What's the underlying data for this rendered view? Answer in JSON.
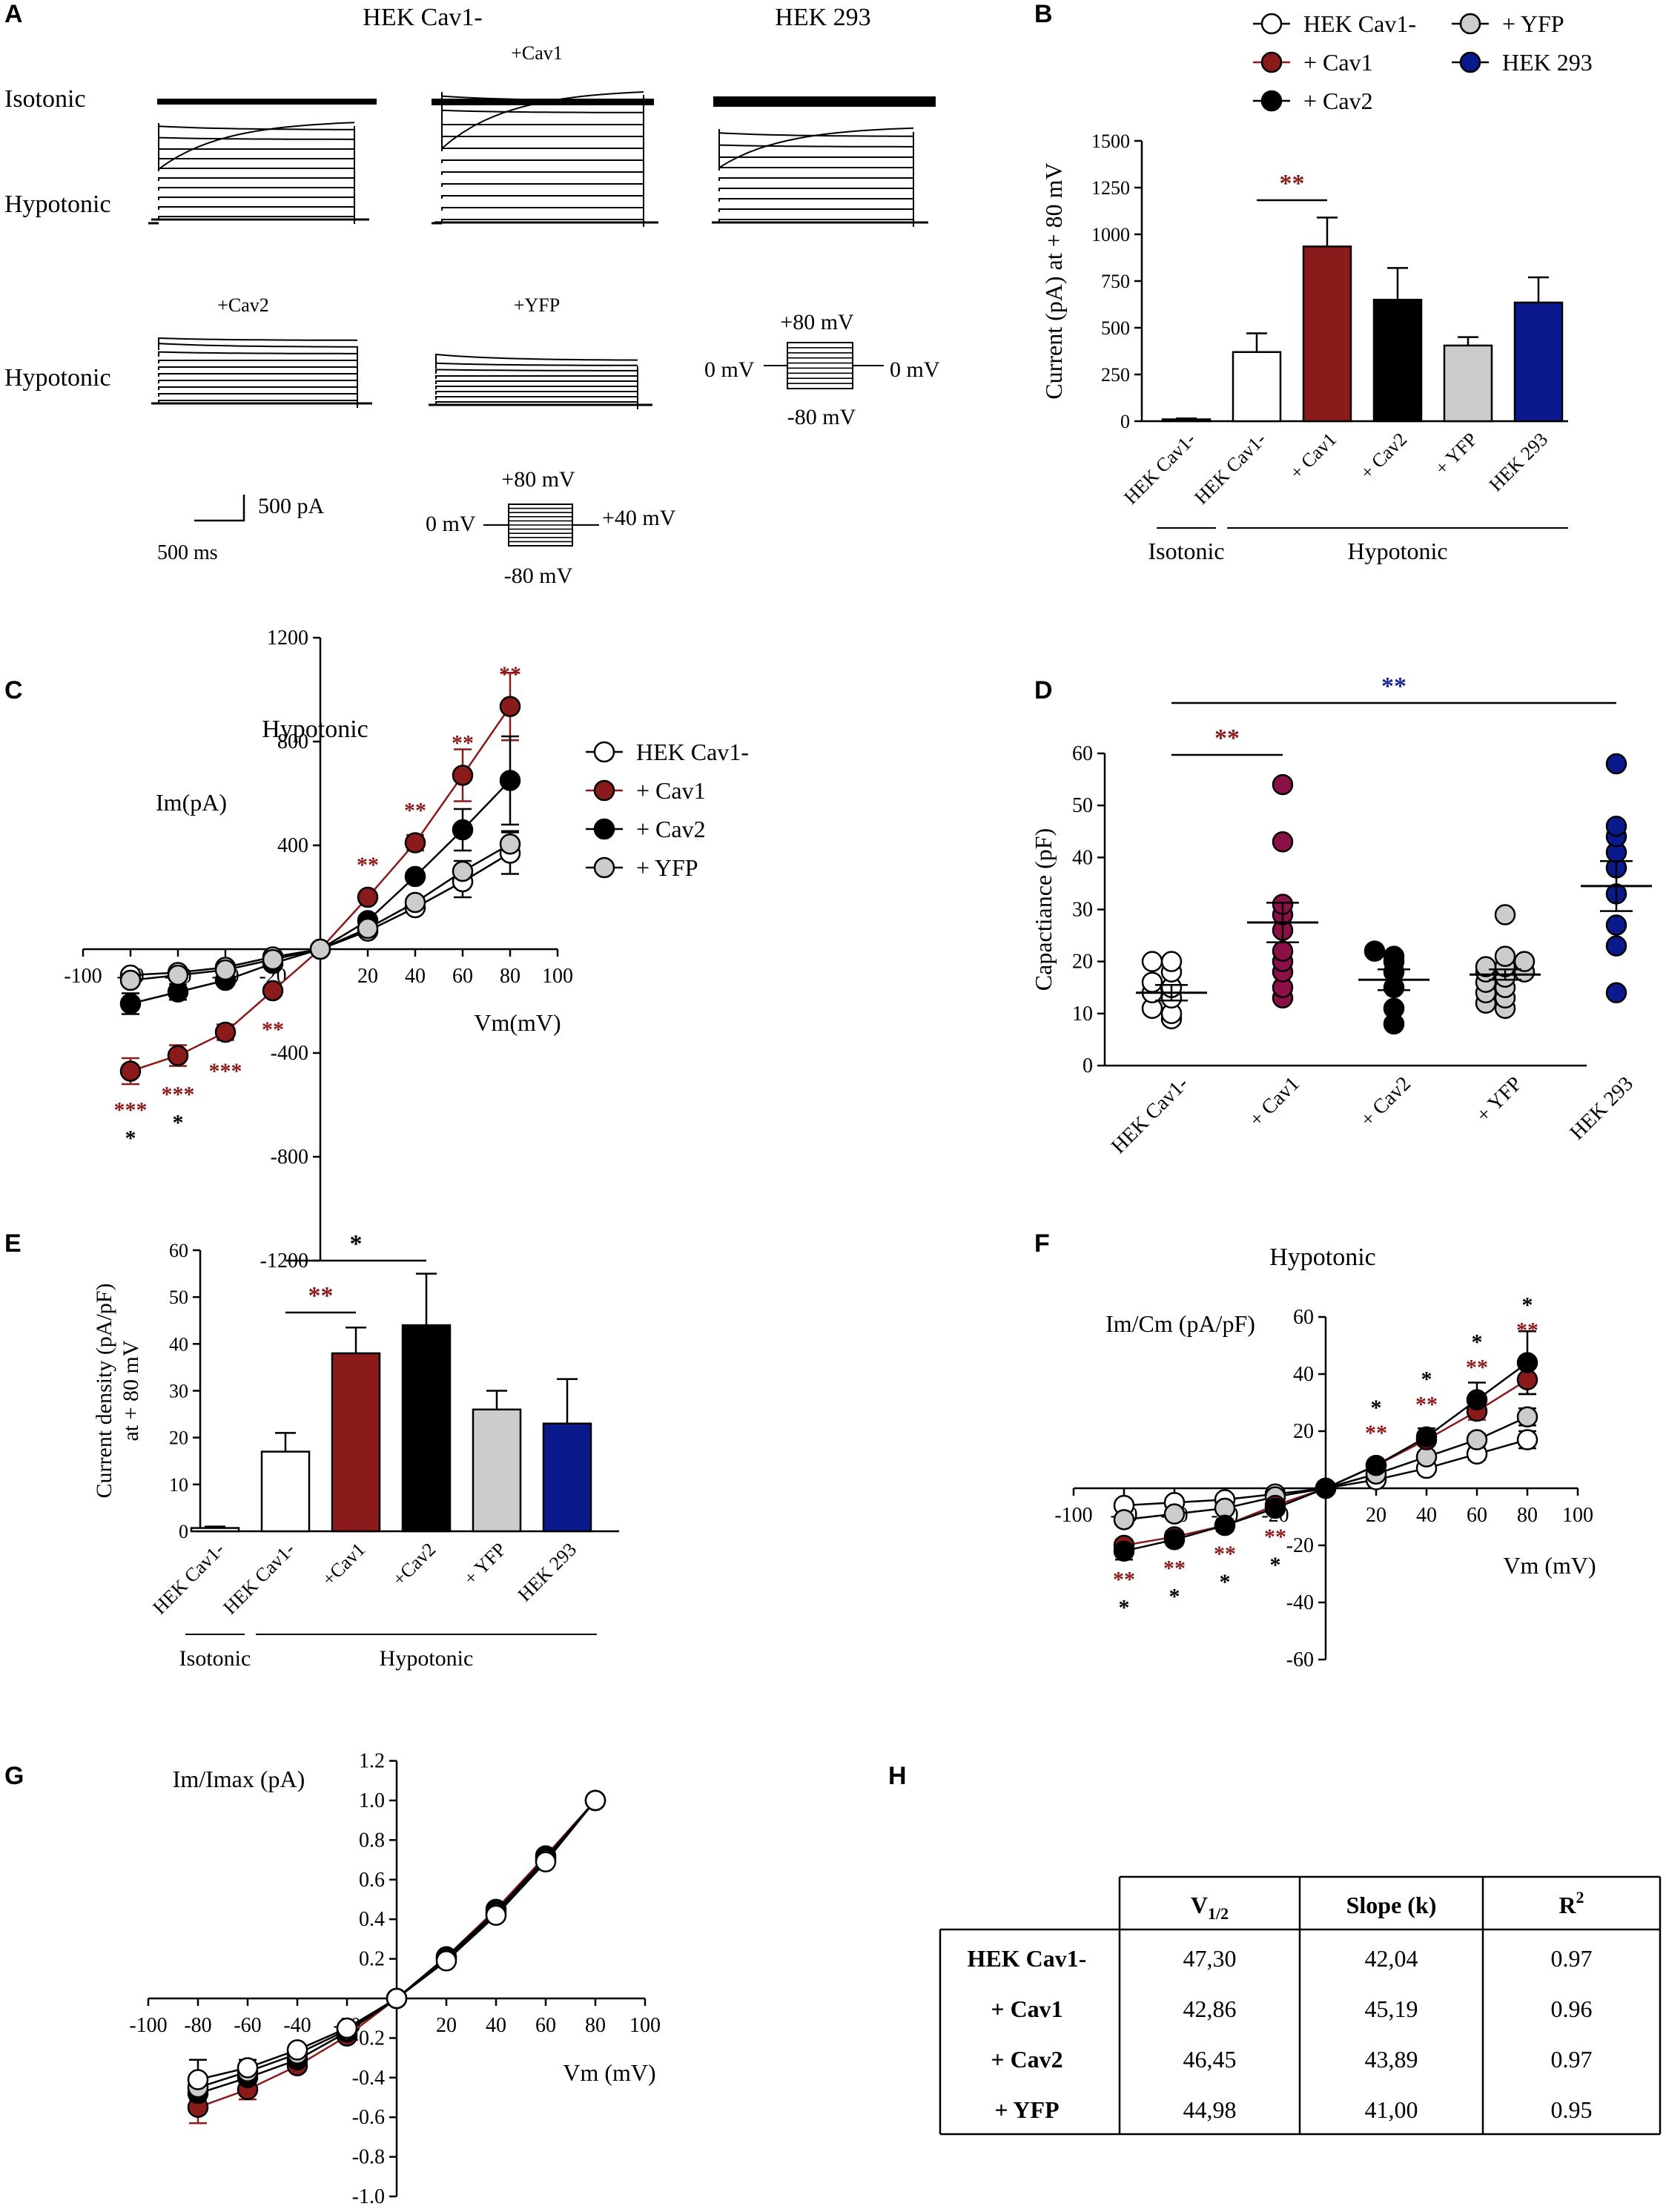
{
  "panel_labels": [
    "A",
    "B",
    "C",
    "D",
    "E",
    "F",
    "G",
    "H"
  ],
  "colors": {
    "white": "#ffffff",
    "red": "#8b1a1a",
    "black": "#000000",
    "gray": "#cccccc",
    "blue": "#0a1a8c",
    "magenta": "#8b1045",
    "sig_red": "#8b1a1a",
    "sig_blue": "#1a2a8c"
  },
  "panel_a": {
    "col_titles": [
      "HEK Cav1-",
      "HEK 293"
    ],
    "row_labels": [
      "Isotonic",
      "Hypotonic",
      "Hypotonic"
    ],
    "trace_labels": [
      "+Cav1",
      "+Cav2",
      "+YFP"
    ],
    "scale_current": "500 pA",
    "scale_time": "500 ms",
    "protocol1": {
      "top": "+80 mV",
      "left": "0 mV",
      "right": "0 mV",
      "bottom": "-80 mV"
    },
    "protocol2": {
      "top": "+80 mV",
      "left": "0 mV",
      "right": "+40 mV",
      "bottom": "-80 mV"
    }
  },
  "chart_data": [
    {
      "id": "B",
      "type": "bar",
      "legend": [
        "HEK Cav1-",
        "+ Cav1",
        "+ Cav2",
        "+ YFP",
        "HEK 293"
      ],
      "categories": [
        "HEK Cav1-",
        "HEK Cav1-",
        "+ Cav1",
        "+ Cav2",
        "+ YFP",
        "HEK 293"
      ],
      "values": [
        10,
        370,
        935,
        650,
        405,
        635
      ],
      "errors": [
        5,
        100,
        155,
        170,
        45,
        135
      ],
      "colors": [
        "#ffffff",
        "#ffffff",
        "#8b1a1a",
        "#000000",
        "#cccccc",
        "#0a1a8c"
      ],
      "ylabel": "Current (pA) at + 80 mV",
      "ylim": [
        0,
        1500
      ],
      "yticks": [
        0,
        250,
        500,
        750,
        1000,
        1250,
        1500
      ],
      "groups": [
        {
          "label": "Isotonic",
          "from": 0,
          "to": 0
        },
        {
          "label": "Hypotonic",
          "from": 1,
          "to": 5
        }
      ],
      "significance": [
        {
          "text": "**",
          "from": 1,
          "to": 2,
          "color": "red"
        }
      ]
    },
    {
      "id": "C",
      "type": "line",
      "title": "Hypotonic",
      "ylabel": "Im(pA)",
      "xlabel": "Vm(mV)",
      "xlim": [
        -100,
        100
      ],
      "ylim": [
        -1200,
        1200
      ],
      "xticks": [
        -100,
        -80,
        -60,
        -40,
        -20,
        20,
        40,
        60,
        80,
        100
      ],
      "yticks": [
        -1200,
        -800,
        -400,
        400,
        800,
        1200
      ],
      "x": [
        -80,
        -60,
        -40,
        -20,
        0,
        20,
        40,
        60,
        80
      ],
      "series": [
        {
          "name": "HEK Cav1-",
          "fill": "#ffffff",
          "values": [
            -100,
            -90,
            -70,
            -30,
            0,
            70,
            160,
            260,
            370
          ],
          "err": [
            0,
            0,
            0,
            0,
            0,
            0,
            0,
            60,
            80
          ]
        },
        {
          "name": "+ Cav1",
          "fill": "#8b1a1a",
          "values": [
            -470,
            -410,
            -320,
            -160,
            0,
            200,
            410,
            670,
            935
          ],
          "err": [
            50,
            40,
            30,
            0,
            0,
            0,
            30,
            100,
            130
          ]
        },
        {
          "name": "+ Cav2",
          "fill": "#000000",
          "values": [
            -210,
            -165,
            -120,
            -55,
            0,
            110,
            280,
            460,
            650
          ],
          "err": [
            40,
            30,
            0,
            0,
            0,
            0,
            0,
            80,
            170
          ]
        },
        {
          "name": "+ YFP",
          "fill": "#cccccc",
          "values": [
            -120,
            -100,
            -80,
            -40,
            0,
            80,
            180,
            300,
            405
          ],
          "err": [
            0,
            0,
            0,
            0,
            0,
            0,
            0,
            40,
            50
          ]
        }
      ],
      "annotations": [
        {
          "x": -80,
          "text": "***",
          "where": "below",
          "color": "red"
        },
        {
          "x": -80,
          "text": "*",
          "where": "below2",
          "color": "black"
        },
        {
          "x": -60,
          "text": "***",
          "where": "below",
          "color": "red"
        },
        {
          "x": -60,
          "text": "*",
          "where": "below2",
          "color": "black"
        },
        {
          "x": -40,
          "text": "***",
          "where": "below",
          "color": "red"
        },
        {
          "x": -20,
          "text": "**",
          "where": "below",
          "color": "red"
        },
        {
          "x": 20,
          "text": "**",
          "where": "above",
          "color": "red"
        },
        {
          "x": 40,
          "text": "**",
          "where": "above",
          "color": "red"
        },
        {
          "x": 60,
          "text": "**",
          "where": "above",
          "color": "red"
        },
        {
          "x": 80,
          "text": "**",
          "where": "above",
          "color": "red"
        }
      ]
    },
    {
      "id": "D",
      "type": "scatter",
      "ylabel": "Capactiance (pF)",
      "ylim": [
        0,
        60
      ],
      "yticks": [
        0,
        10,
        20,
        30,
        40,
        50,
        60
      ],
      "categories": [
        "HEK Cav1-",
        "+ Cav1",
        "+ Cav2",
        "+ YFP",
        "HEK 293"
      ],
      "fills": [
        "#ffffff",
        "#8b1045",
        "#000000",
        "#cccccc",
        "#0a1a8c"
      ],
      "points": [
        [
          9,
          10,
          11,
          13,
          14,
          15,
          16,
          18,
          20,
          20
        ],
        [
          13,
          15,
          18,
          20,
          22,
          26,
          29,
          31,
          43,
          54
        ],
        [
          8,
          11,
          15,
          18,
          20,
          21,
          22
        ],
        [
          11,
          12,
          13,
          14,
          15,
          16,
          17,
          18,
          18,
          19,
          19,
          20,
          21,
          29
        ],
        [
          14,
          23,
          27,
          33,
          38,
          41,
          44,
          46,
          58
        ]
      ],
      "means": [
        14,
        27.5,
        16.5,
        17.5,
        34.5
      ],
      "sems": [
        1.5,
        3.8,
        2,
        1,
        4.8
      ],
      "significance": [
        {
          "text": "**",
          "from": 0,
          "to": 4,
          "color": "blue"
        },
        {
          "text": "**",
          "from": 0,
          "to": 1,
          "color": "red"
        }
      ]
    },
    {
      "id": "E",
      "type": "bar",
      "categories": [
        "HEK Cav1-",
        "HEK Cav1-",
        "+Cav1",
        "+Cav2",
        "+ YFP",
        "HEK 293"
      ],
      "values": [
        0.7,
        17,
        38,
        44,
        26,
        23
      ],
      "errors": [
        0.3,
        4,
        5.5,
        11,
        4,
        9.5
      ],
      "colors": [
        "#ffffff",
        "#ffffff",
        "#8b1a1a",
        "#000000",
        "#cccccc",
        "#0a1a8c"
      ],
      "ylabel": "Current density (pA/pF)",
      "ylabel2": "at + 80 mV",
      "ylim": [
        0,
        60
      ],
      "yticks": [
        0,
        10,
        20,
        30,
        40,
        50,
        60
      ],
      "groups": [
        {
          "label": "Isotonic",
          "from": 0,
          "to": 0
        },
        {
          "label": "Hypotonic",
          "from": 1,
          "to": 5
        }
      ],
      "significance": [
        {
          "text": "*",
          "from": 1,
          "to": 3,
          "color": "black"
        },
        {
          "text": "**",
          "from": 1,
          "to": 2,
          "color": "red"
        }
      ]
    },
    {
      "id": "F",
      "type": "line",
      "title": "Hypotonic",
      "ylabel": "Im/Cm (pA/pF)",
      "xlabel": "Vm (mV)",
      "xlim": [
        -100,
        100
      ],
      "ylim": [
        -60,
        60
      ],
      "xticks": [
        -100,
        -80,
        -60,
        -40,
        -20,
        20,
        40,
        60,
        80,
        100
      ],
      "yticks": [
        -60,
        -40,
        -20,
        20,
        40,
        60
      ],
      "x": [
        -80,
        -60,
        -40,
        -20,
        0,
        20,
        40,
        60,
        80
      ],
      "series": [
        {
          "name": "HEK Cav1-",
          "fill": "#ffffff",
          "values": [
            -6,
            -5,
            -4,
            -2,
            0,
            3,
            7,
            12,
            17
          ],
          "err": [
            0,
            0,
            0,
            0,
            0,
            0,
            0,
            2,
            3
          ]
        },
        {
          "name": "+ YFP",
          "fill": "#cccccc",
          "values": [
            -11,
            -9,
            -7,
            -3,
            0,
            5,
            11,
            17,
            25
          ],
          "err": [
            0,
            0,
            0,
            0,
            0,
            0,
            0,
            2,
            3
          ]
        },
        {
          "name": "+ Cav1",
          "fill": "#8b1a1a",
          "values": [
            -20,
            -17,
            -13,
            -6,
            0,
            8,
            17,
            27,
            38
          ],
          "err": [
            2,
            2,
            1,
            0,
            0,
            0,
            2,
            3,
            5
          ]
        },
        {
          "name": "+ Cav2",
          "fill": "#000000",
          "values": [
            -22,
            -18,
            -13,
            -7,
            0,
            8,
            18,
            31,
            44
          ],
          "err": [
            3,
            2,
            2,
            0,
            0,
            0,
            3,
            6,
            11
          ]
        }
      ],
      "annotations": [
        {
          "x": -80,
          "text": "**",
          "where": "below",
          "color": "red"
        },
        {
          "x": -80,
          "text": "*",
          "where": "below2",
          "color": "black"
        },
        {
          "x": -60,
          "text": "**",
          "where": "below",
          "color": "red"
        },
        {
          "x": -60,
          "text": "*",
          "where": "below2",
          "color": "black"
        },
        {
          "x": -40,
          "text": "**",
          "where": "below",
          "color": "red"
        },
        {
          "x": -40,
          "text": "*",
          "where": "below2",
          "color": "black"
        },
        {
          "x": -20,
          "text": "**",
          "where": "below",
          "color": "red"
        },
        {
          "x": -20,
          "text": "*",
          "where": "below2",
          "color": "black"
        },
        {
          "x": 20,
          "text": "**",
          "where": "above",
          "color": "red"
        },
        {
          "x": 20,
          "text": "*",
          "where": "above2",
          "color": "black"
        },
        {
          "x": 40,
          "text": "**",
          "where": "above",
          "color": "red"
        },
        {
          "x": 40,
          "text": "*",
          "where": "above2",
          "color": "black"
        },
        {
          "x": 60,
          "text": "**",
          "where": "above",
          "color": "red"
        },
        {
          "x": 60,
          "text": "*",
          "where": "above2",
          "color": "black"
        },
        {
          "x": 80,
          "text": "**",
          "where": "above",
          "color": "red"
        },
        {
          "x": 80,
          "text": "*",
          "where": "above2",
          "color": "black"
        }
      ]
    },
    {
      "id": "G",
      "type": "line",
      "ylabel": "Im/Imax (pA)",
      "xlabel": "Vm (mV)",
      "xlim": [
        -100,
        100
      ],
      "ylim": [
        -1.0,
        1.2
      ],
      "xticks": [
        -100,
        -80,
        -60,
        -40,
        -20,
        20,
        40,
        60,
        80,
        100
      ],
      "yticks": [
        -1.0,
        -0.8,
        -0.6,
        -0.4,
        -0.2,
        0.2,
        0.4,
        0.6,
        0.8,
        1.0,
        1.2
      ],
      "x": [
        -80,
        -60,
        -40,
        -20,
        0,
        20,
        40,
        60,
        80
      ],
      "series": [
        {
          "name": "+ Cav1",
          "fill": "#8b1a1a",
          "values": [
            -0.55,
            -0.46,
            -0.34,
            -0.19,
            0,
            0.21,
            0.45,
            0.72,
            1.0
          ],
          "err": [
            0.08,
            0.05,
            0,
            0,
            0,
            0,
            0,
            0,
            0
          ]
        },
        {
          "name": "+ Cav2",
          "fill": "#000000",
          "values": [
            -0.48,
            -0.4,
            -0.31,
            -0.17,
            0,
            0.21,
            0.44,
            0.71,
            1.0
          ],
          "err": [
            0.07,
            0.05,
            0,
            0,
            0,
            0,
            0,
            0,
            0
          ]
        },
        {
          "name": "+ YFP",
          "fill": "#cccccc",
          "values": [
            -0.45,
            -0.37,
            -0.28,
            -0.16,
            0,
            0.2,
            0.43,
            0.7,
            1.0
          ],
          "err": [
            0.05,
            0,
            0,
            0,
            0,
            0,
            0,
            0,
            0
          ]
        },
        {
          "name": "HEK Cav1-",
          "fill": "#ffffff",
          "values": [
            -0.41,
            -0.35,
            -0.26,
            -0.15,
            0,
            0.19,
            0.42,
            0.69,
            1.0
          ],
          "err": [
            0.1,
            0.04,
            0,
            0,
            0,
            0,
            0,
            0,
            0
          ]
        }
      ]
    },
    {
      "id": "H",
      "type": "table",
      "headers": [
        "V1/2",
        "Slope (k)",
        "R2"
      ],
      "rows": [
        {
          "label": "HEK Cav1-",
          "cells": [
            "47,30",
            "42,04",
            "0.97"
          ]
        },
        {
          "label": "+ Cav1",
          "cells": [
            "42,86",
            "45,19",
            "0.96"
          ]
        },
        {
          "label": "+ Cav2",
          "cells": [
            "46,45",
            "43,89",
            "0.97"
          ]
        },
        {
          "label": "+ YFP",
          "cells": [
            "44,98",
            "41,00",
            "0.95"
          ]
        }
      ]
    }
  ]
}
